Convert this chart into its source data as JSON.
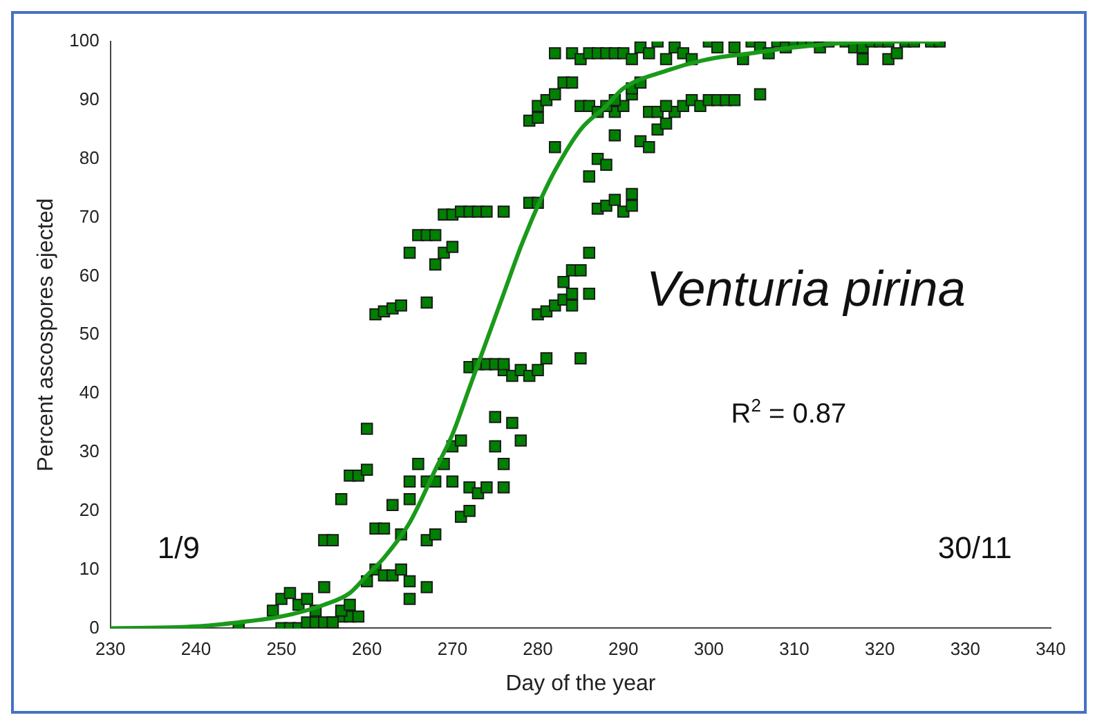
{
  "chart_data": {
    "type": "scatter",
    "xlabel": "Day of the year",
    "ylabel": "Percent ascospores ejected",
    "xlim": [
      230,
      340
    ],
    "xticks": [
      230,
      240,
      250,
      260,
      270,
      280,
      290,
      300,
      310,
      320,
      330,
      340
    ],
    "ylim": [
      0,
      100
    ],
    "yticks": [
      0,
      10,
      20,
      30,
      40,
      50,
      60,
      70,
      80,
      90,
      100
    ],
    "grid": false,
    "legend": false,
    "annotations": [
      "1/9",
      "30/11",
      "Venturia pirina",
      "R$^{2}$ = 0.87"
    ],
    "series": [
      {
        "type": "scatter",
        "marker": "square",
        "color": "#008000",
        "x": [
          245,
          250,
          251,
          252,
          253,
          254,
          255,
          256,
          257,
          258,
          249,
          250,
          251,
          252,
          253,
          254,
          255,
          256,
          257,
          258,
          259,
          260,
          261,
          262,
          263,
          264,
          265,
          265,
          267,
          255,
          256,
          257,
          258,
          259,
          260,
          260,
          261,
          262,
          263,
          264,
          265,
          265,
          266,
          267,
          267,
          268,
          268,
          269,
          270,
          270,
          271,
          271,
          272,
          272,
          273,
          274,
          275,
          275,
          276,
          276,
          277,
          278,
          272,
          273,
          274,
          275,
          276,
          276,
          277,
          278,
          279,
          280,
          281,
          285,
          261,
          262,
          263,
          264,
          267,
          280,
          281,
          282,
          283,
          284,
          284,
          286,
          265,
          266,
          267,
          268,
          268,
          269,
          270,
          283,
          284,
          285,
          286,
          269,
          270,
          271,
          272,
          273,
          274,
          276,
          279,
          280,
          287,
          288,
          289,
          290,
          291,
          291,
          282,
          286,
          287,
          288,
          289,
          289,
          290,
          291,
          292,
          293,
          294,
          295,
          296,
          279,
          280,
          280,
          281,
          282,
          283,
          284,
          285,
          286,
          287,
          288,
          289,
          291,
          292,
          293,
          294,
          295,
          297,
          298,
          299,
          300,
          301,
          302,
          303,
          306,
          282,
          284,
          285,
          286,
          287,
          288,
          289,
          290,
          291,
          292,
          293,
          294,
          295,
          296,
          297,
          298,
          300,
          301,
          303,
          304,
          305,
          306,
          307,
          308,
          309,
          310,
          311,
          312,
          313,
          314,
          316,
          317,
          318,
          319,
          320,
          321,
          321,
          322,
          323,
          324,
          326,
          327,
          318
        ],
        "values": [
          0,
          0,
          0,
          0,
          1,
          1,
          1,
          1,
          2,
          2,
          3,
          5,
          6,
          4,
          5,
          3,
          7,
          1,
          3,
          4,
          2,
          8,
          10,
          9,
          9,
          10,
          5,
          8,
          7,
          15,
          15,
          22,
          26,
          26,
          27,
          34,
          17,
          17,
          21,
          16,
          25,
          22,
          28,
          25,
          15,
          16,
          25,
          28,
          31,
          25,
          32,
          19,
          20,
          24,
          23,
          24,
          36,
          31,
          28,
          24,
          35,
          32,
          44.5,
          45,
          45,
          45,
          44,
          45,
          43,
          44,
          43,
          44,
          46,
          46,
          53.5,
          54,
          54.5,
          55,
          55.5,
          53.5,
          54,
          55,
          56,
          57,
          55,
          57,
          64,
          67,
          67,
          67,
          62,
          64,
          65,
          59,
          61,
          61,
          64,
          70.5,
          70.5,
          71,
          71,
          71,
          71,
          71,
          72.5,
          72.5,
          71.5,
          72,
          73,
          71,
          74,
          72,
          82,
          77,
          80,
          79,
          88,
          84,
          89,
          91,
          83,
          82,
          85,
          86,
          88,
          86.5,
          87,
          89,
          90,
          91,
          93,
          93,
          89,
          89,
          88,
          89,
          90,
          92,
          93,
          88,
          88,
          89,
          89,
          90,
          89,
          90,
          90,
          90,
          90,
          91,
          98,
          98,
          97,
          98,
          98,
          98,
          98,
          98,
          97,
          99,
          98,
          100,
          97,
          99,
          98,
          97,
          100,
          99,
          99,
          97,
          100,
          99,
          98,
          100,
          99,
          100,
          100,
          100,
          99,
          100,
          100,
          99,
          99,
          100,
          100,
          97,
          100,
          98,
          100,
          100,
          100,
          100,
          97
        ]
      },
      {
        "type": "line",
        "marker": "none",
        "color": "#1a9a1a",
        "x": [
          230,
          240,
          245,
          250,
          255,
          258,
          260,
          262,
          265,
          268,
          270,
          272,
          274,
          276,
          278,
          280,
          282,
          285,
          288,
          290,
          295,
          300,
          305,
          310,
          320,
          327
        ],
        "values": [
          0,
          0.3,
          1,
          2,
          4,
          6,
          9,
          12,
          18,
          27,
          33,
          41,
          49,
          57,
          65,
          72,
          78,
          85,
          89,
          92,
          95,
          97,
          98,
          99,
          100,
          100
        ]
      }
    ]
  }
}
